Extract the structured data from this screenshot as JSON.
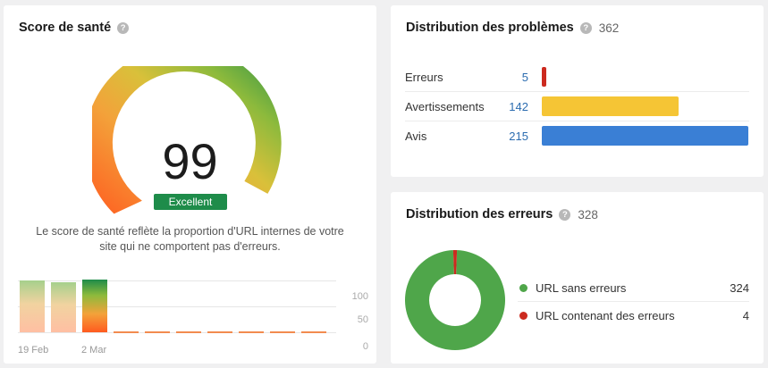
{
  "health": {
    "title": "Score de santé",
    "score": "99",
    "score_value": 99,
    "badge": "Excellent",
    "description": "Le score de santé reflète la proportion d'URL internes de votre site qui ne comportent pas d'erreurs.",
    "trend": {
      "ticks": [
        "100",
        "50",
        "0"
      ],
      "dates": [
        "19 Feb",
        "2 Mar"
      ]
    },
    "colors": {
      "excellent": "#1e8c4a",
      "low": "#fa6b2b",
      "mid": "#e6b83a",
      "high": "#1e8c4a"
    }
  },
  "issues": {
    "title": "Distribution des problèmes",
    "total": "362",
    "rows": [
      {
        "label": "Erreurs",
        "count": "5",
        "value": 5,
        "color": "#cc2a1f"
      },
      {
        "label": "Avertissements",
        "count": "142",
        "value": 142,
        "color": "#f5c535"
      },
      {
        "label": "Avis",
        "count": "215",
        "value": 215,
        "color": "#3a7fd5"
      }
    ]
  },
  "errors": {
    "title": "Distribution des erreurs",
    "total": "328",
    "legend": [
      {
        "label": "URL sans erreurs",
        "value": "324",
        "color": "#4fa64a"
      },
      {
        "label": "URL contenant des erreurs",
        "value": "4",
        "color": "#cc2a1f"
      }
    ]
  }
}
